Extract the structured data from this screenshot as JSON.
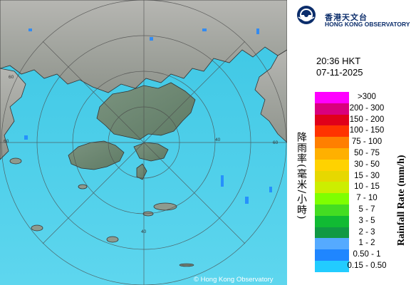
{
  "header": {
    "org_name_cn": "香港天文台",
    "org_name_en": "HONG KONG OBSERVATORY"
  },
  "timestamp": {
    "time": "20:36 HKT",
    "date": "07-11-2025"
  },
  "legend": {
    "title_cn": "降雨率(毫米/小時)",
    "title_en": "Rainfall Rate (mm/h)",
    "items": [
      {
        "label": ">300",
        "color": "#ff00ff"
      },
      {
        "label": "200 - 300",
        "color": "#d9007e"
      },
      {
        "label": "150 - 200",
        "color": "#e0001a"
      },
      {
        "label": "100 - 150",
        "color": "#ff3300"
      },
      {
        "label": "75 - 100",
        "color": "#ff7f00"
      },
      {
        "label": "50 - 75",
        "color": "#ffb000"
      },
      {
        "label": "30 - 50",
        "color": "#ffd200"
      },
      {
        "label": "15 - 30",
        "color": "#e6d800"
      },
      {
        "label": "10 - 15",
        "color": "#ccee00"
      },
      {
        "label": "7 - 10",
        "color": "#7fff00"
      },
      {
        "label": "5 - 7",
        "color": "#44dd22"
      },
      {
        "label": "3 - 5",
        "color": "#11bb33"
      },
      {
        "label": "2 - 3",
        "color": "#119944"
      },
      {
        "label": "1 - 2",
        "color": "#55aaff"
      },
      {
        "label": "0.50 - 1",
        "color": "#1f86ff"
      },
      {
        "label": "0.15 - 0.50",
        "color": "#22ccff"
      }
    ]
  },
  "map": {
    "range_labels": [
      "60",
      "60",
      "40",
      "40",
      "60"
    ],
    "copyright": "© Hong Kong Observatory"
  }
}
